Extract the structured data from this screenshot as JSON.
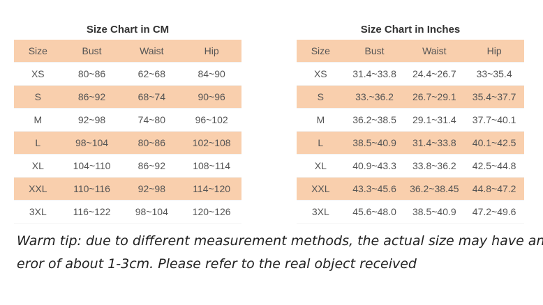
{
  "tables": [
    {
      "title": "Size Chart in CM",
      "header": [
        "Size",
        "Bust",
        "Waist",
        "Hip"
      ],
      "rows": [
        [
          "XS",
          "80~86",
          "62~68",
          "84~90"
        ],
        [
          "S",
          "86~92",
          "68~74",
          "90~96"
        ],
        [
          "M",
          "92~98",
          "74~80",
          "96~102"
        ],
        [
          "L",
          "98~104",
          "80~86",
          "102~108"
        ],
        [
          "XL",
          "104~110",
          "86~92",
          "108~114"
        ],
        [
          "XXL",
          "110~116",
          "92~98",
          "114~120"
        ],
        [
          "3XL",
          "116~122",
          "98~104",
          "120~126"
        ]
      ]
    },
    {
      "title": "Size Chart in Inches",
      "header": [
        "Size",
        "Bust",
        "Waist",
        "Hip"
      ],
      "rows": [
        [
          "XS",
          "31.4~33.8",
          "24.4~26.7",
          "33~35.4"
        ],
        [
          "S",
          "33.~36.2",
          "26.7~29.1",
          "35.4~37.7"
        ],
        [
          "M",
          "36.2~38.5",
          "29.1~31.4",
          "37.7~40.1"
        ],
        [
          "L",
          "38.5~40.9",
          "31.4~33.8",
          "40.1~42.5"
        ],
        [
          "XL",
          "40.9~43.3",
          "33.8~36.2",
          "42.5~44.8"
        ],
        [
          "XXL",
          "43.3~45.6",
          "36.2~38.45",
          "44.8~47.2"
        ],
        [
          "3XL",
          "45.6~48.0",
          "38.5~40.9",
          "47.2~49.6"
        ]
      ]
    }
  ],
  "tip": {
    "lines": [
      "Warm tip: due to different measurement methods, the actual size may have an",
      "eror of about 1-3cm. Please refer to the real object received"
    ]
  }
}
